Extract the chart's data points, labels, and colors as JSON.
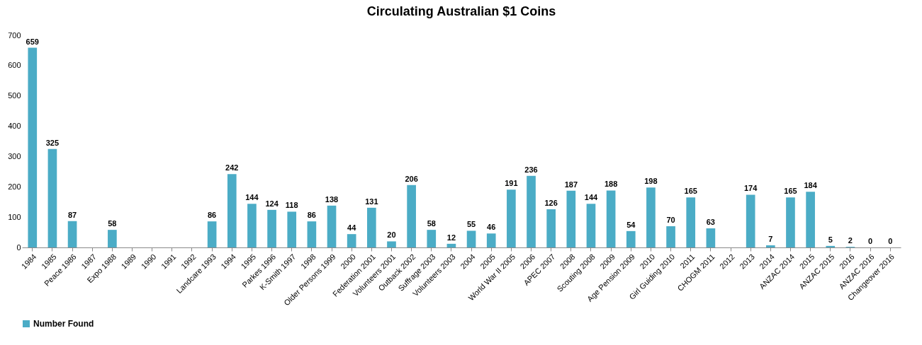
{
  "chart_data": {
    "type": "bar",
    "title": "Circulating Australian $1 Coins",
    "categories": [
      "1984",
      "1985",
      "Peace 1986",
      "1987",
      "Expo 1988",
      "1989",
      "1990",
      "1991",
      "1992",
      "Landcare 1993",
      "1994",
      "1995",
      "Parkes 1996",
      "K-Smith 1997",
      "1998",
      "Older Persons 1999",
      "2000",
      "Federation 2001",
      "Volunteers 2001",
      "Outback 2002",
      "Suffrage 2003",
      "Volunteers 2003",
      "2004",
      "2005",
      "World War II 2005",
      "2006",
      "APEC 2007",
      "2008",
      "Scouting 2008",
      "2009",
      "Age Pension 2009",
      "2010",
      "Girl Guiding 2010",
      "2011",
      "CHOGM 2011",
      "2012",
      "2013",
      "2014",
      "ANZAC 2014",
      "2015",
      "ANZAC 2015",
      "2016",
      "ANZAC 2016",
      "Changeover 2016"
    ],
    "series": [
      {
        "name": "Number Found",
        "color": "#4bacc6",
        "values": [
          659,
          325,
          87,
          null,
          58,
          null,
          null,
          null,
          null,
          86,
          242,
          144,
          124,
          118,
          86,
          138,
          44,
          131,
          20,
          206,
          58,
          12,
          55,
          46,
          191,
          236,
          126,
          187,
          144,
          188,
          54,
          198,
          70,
          165,
          63,
          null,
          174,
          7,
          165,
          184,
          5,
          2,
          0,
          0
        ]
      }
    ],
    "ylim": [
      0,
      700
    ],
    "yticks": [
      0,
      100,
      200,
      300,
      400,
      500,
      600,
      700
    ],
    "grid": false,
    "legend": "bottom",
    "data_labels": true
  }
}
